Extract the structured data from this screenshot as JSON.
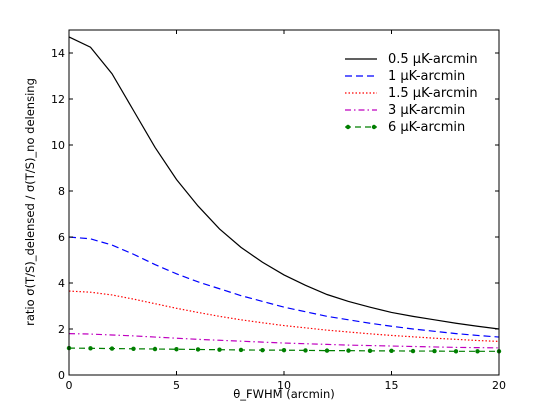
{
  "chart_data": {
    "type": "line",
    "xlabel": "θ_FWHM (arcmin)",
    "ylabel": "ratio σ(T/S)_delensed / σ(T/S)_no delensing",
    "xlim": [
      0,
      20
    ],
    "ylim": [
      0,
      15
    ],
    "x_ticks": [
      0,
      5,
      10,
      15,
      20
    ],
    "y_ticks": [
      0,
      2,
      4,
      6,
      8,
      10,
      12,
      14
    ],
    "grid": false,
    "legend_position": "top-right",
    "x": [
      0,
      1,
      2,
      3,
      4,
      5,
      6,
      7,
      8,
      9,
      10,
      11,
      12,
      13,
      14,
      15,
      16,
      17,
      18,
      19,
      20
    ],
    "series": [
      {
        "name": "0.5 μK-arcmin",
        "color": "#000000",
        "style": "solid",
        "values": [
          14.7,
          14.25,
          13.1,
          11.5,
          9.9,
          8.5,
          7.35,
          6.35,
          5.55,
          4.9,
          4.35,
          3.9,
          3.5,
          3.2,
          2.95,
          2.72,
          2.55,
          2.4,
          2.25,
          2.12,
          2.0
        ]
      },
      {
        "name": "1 μK-arcmin",
        "color": "#0000ff",
        "style": "dashed",
        "values": [
          6.0,
          5.92,
          5.65,
          5.25,
          4.8,
          4.4,
          4.05,
          3.75,
          3.45,
          3.2,
          2.95,
          2.75,
          2.55,
          2.4,
          2.25,
          2.12,
          2.0,
          1.9,
          1.8,
          1.72,
          1.65
        ]
      },
      {
        "name": "1.5 μK-arcmin",
        "color": "#ff0000",
        "style": "dotted",
        "values": [
          3.65,
          3.6,
          3.48,
          3.3,
          3.1,
          2.9,
          2.72,
          2.55,
          2.4,
          2.27,
          2.15,
          2.05,
          1.95,
          1.87,
          1.79,
          1.72,
          1.66,
          1.6,
          1.55,
          1.5,
          1.46
        ]
      },
      {
        "name": "3 μK-arcmin",
        "color": "#bf00bf",
        "style": "dashdot",
        "values": [
          1.8,
          1.78,
          1.74,
          1.7,
          1.65,
          1.6,
          1.55,
          1.51,
          1.47,
          1.43,
          1.39,
          1.36,
          1.33,
          1.3,
          1.28,
          1.26,
          1.24,
          1.22,
          1.2,
          1.19,
          1.18
        ]
      },
      {
        "name": "6 μK-arcmin",
        "color": "#007f00",
        "style": "dashed-dot-marker",
        "values": [
          1.17,
          1.16,
          1.15,
          1.14,
          1.13,
          1.12,
          1.11,
          1.1,
          1.09,
          1.08,
          1.08,
          1.07,
          1.06,
          1.06,
          1.05,
          1.05,
          1.04,
          1.04,
          1.03,
          1.03,
          1.03
        ]
      }
    ]
  }
}
